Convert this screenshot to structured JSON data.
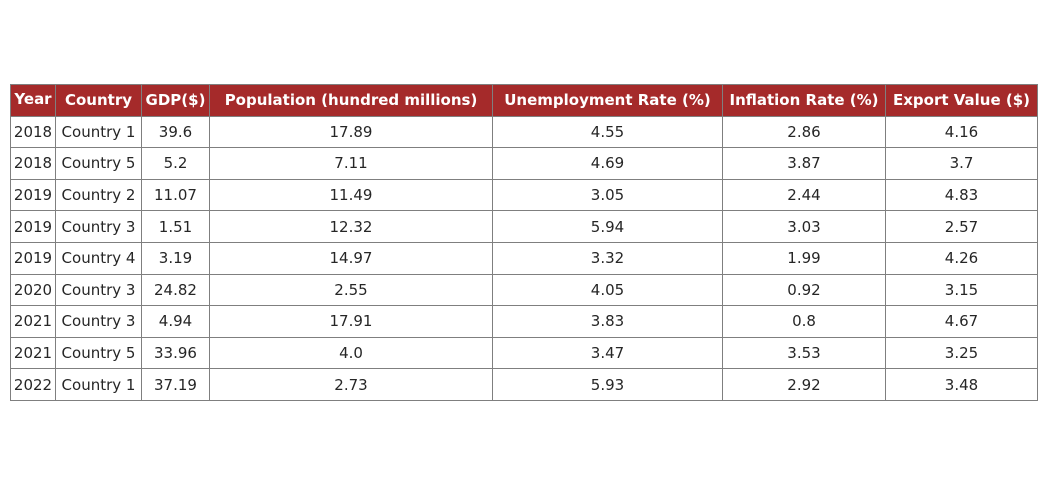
{
  "chart_data": {
    "type": "table",
    "columns": [
      "Year",
      "Country",
      "GDP($)",
      "Population (hundred millions)",
      "Unemployment Rate (%)",
      "Inflation Rate (%)",
      "Export Value ($)"
    ],
    "rows": [
      [
        "2018",
        "Country 1",
        "39.6",
        "17.89",
        "4.55",
        "2.86",
        "4.16"
      ],
      [
        "2018",
        "Country 5",
        "5.2",
        "7.11",
        "4.69",
        "3.87",
        "3.7"
      ],
      [
        "2019",
        "Country 2",
        "11.07",
        "11.49",
        "3.05",
        "2.44",
        "4.83"
      ],
      [
        "2019",
        "Country 3",
        "1.51",
        "12.32",
        "5.94",
        "3.03",
        "2.57"
      ],
      [
        "2019",
        "Country 4",
        "3.19",
        "14.97",
        "3.32",
        "1.99",
        "4.26"
      ],
      [
        "2020",
        "Country 3",
        "24.82",
        "2.55",
        "4.05",
        "0.92",
        "3.15"
      ],
      [
        "2021",
        "Country 3",
        "4.94",
        "17.91",
        "3.83",
        "0.8",
        "4.67"
      ],
      [
        "2021",
        "Country 5",
        "33.96",
        "4.0",
        "3.47",
        "3.53",
        "3.25"
      ],
      [
        "2022",
        "Country 1",
        "37.19",
        "2.73",
        "5.93",
        "2.92",
        "3.48"
      ]
    ],
    "header_color": "#a52a2a",
    "header_text_color": "#ffffff",
    "border_color": "#7f7f7f"
  }
}
